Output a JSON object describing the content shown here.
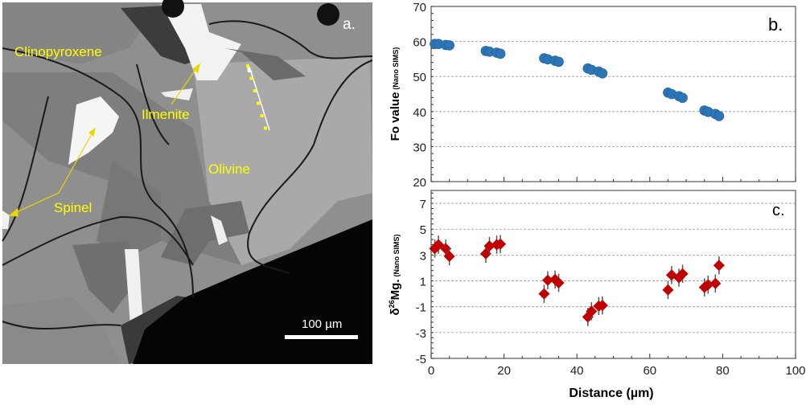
{
  "panel_a": {
    "panel_label": "a.",
    "labels": {
      "clinopyroxene": "Clinopyroxene",
      "ilmenite": "Ilmenite",
      "olivine": "Olivine",
      "spinel": "Spinel"
    },
    "scale_bar": "100 µm",
    "label_color": "#ffff00"
  },
  "chart_data": [
    {
      "type": "scatter",
      "panel_label": "b.",
      "ylabel": "Fo value",
      "ylabel_sub": "(Nano SIMS)",
      "xlim": [
        0,
        100
      ],
      "ylim": [
        20,
        70
      ],
      "yticks": [
        20,
        30,
        40,
        50,
        60,
        70
      ],
      "grid": true,
      "marker_color": "#2e75b6",
      "x": [
        1,
        2,
        4,
        5,
        15,
        16,
        18,
        19,
        31,
        32,
        34,
        35,
        43,
        44,
        46,
        47,
        65,
        66,
        68,
        69,
        75,
        76,
        78,
        79
      ],
      "y": [
        59.3,
        59.3,
        59.0,
        58.9,
        57.3,
        57.1,
        56.8,
        56.5,
        55.2,
        54.9,
        54.5,
        54.2,
        52.3,
        51.9,
        51.4,
        50.9,
        45.4,
        45.0,
        44.4,
        43.9,
        40.3,
        39.9,
        39.3,
        38.7
      ]
    },
    {
      "type": "scatter",
      "panel_label": "c.",
      "ylabel_delta": "δ",
      "ylabel_sup": "26",
      "ylabel_main": "Mg.",
      "ylabel_sub": "(Nano SIMS)",
      "xlabel": "Distance (µm)",
      "xlim": [
        0,
        100
      ],
      "ylim": [
        -5,
        8
      ],
      "xticks": [
        0,
        20,
        40,
        60,
        80,
        100
      ],
      "yticks": [
        -5,
        -3,
        -1,
        1,
        3,
        5,
        7
      ],
      "grid": true,
      "marker_color": "#c00000",
      "error": 0.7,
      "x": [
        1,
        2,
        4,
        5,
        15,
        16,
        18,
        19,
        31,
        32,
        34,
        35,
        43,
        44,
        46,
        47,
        65,
        66,
        68,
        69,
        75,
        76,
        78,
        79
      ],
      "y": [
        3.5,
        3.8,
        3.5,
        2.9,
        3.1,
        3.7,
        3.8,
        3.85,
        0.0,
        1.05,
        1.1,
        0.85,
        -1.8,
        -1.35,
        -0.95,
        -0.9,
        0.3,
        1.45,
        1.25,
        1.55,
        0.5,
        0.7,
        0.8,
        2.2
      ]
    }
  ]
}
